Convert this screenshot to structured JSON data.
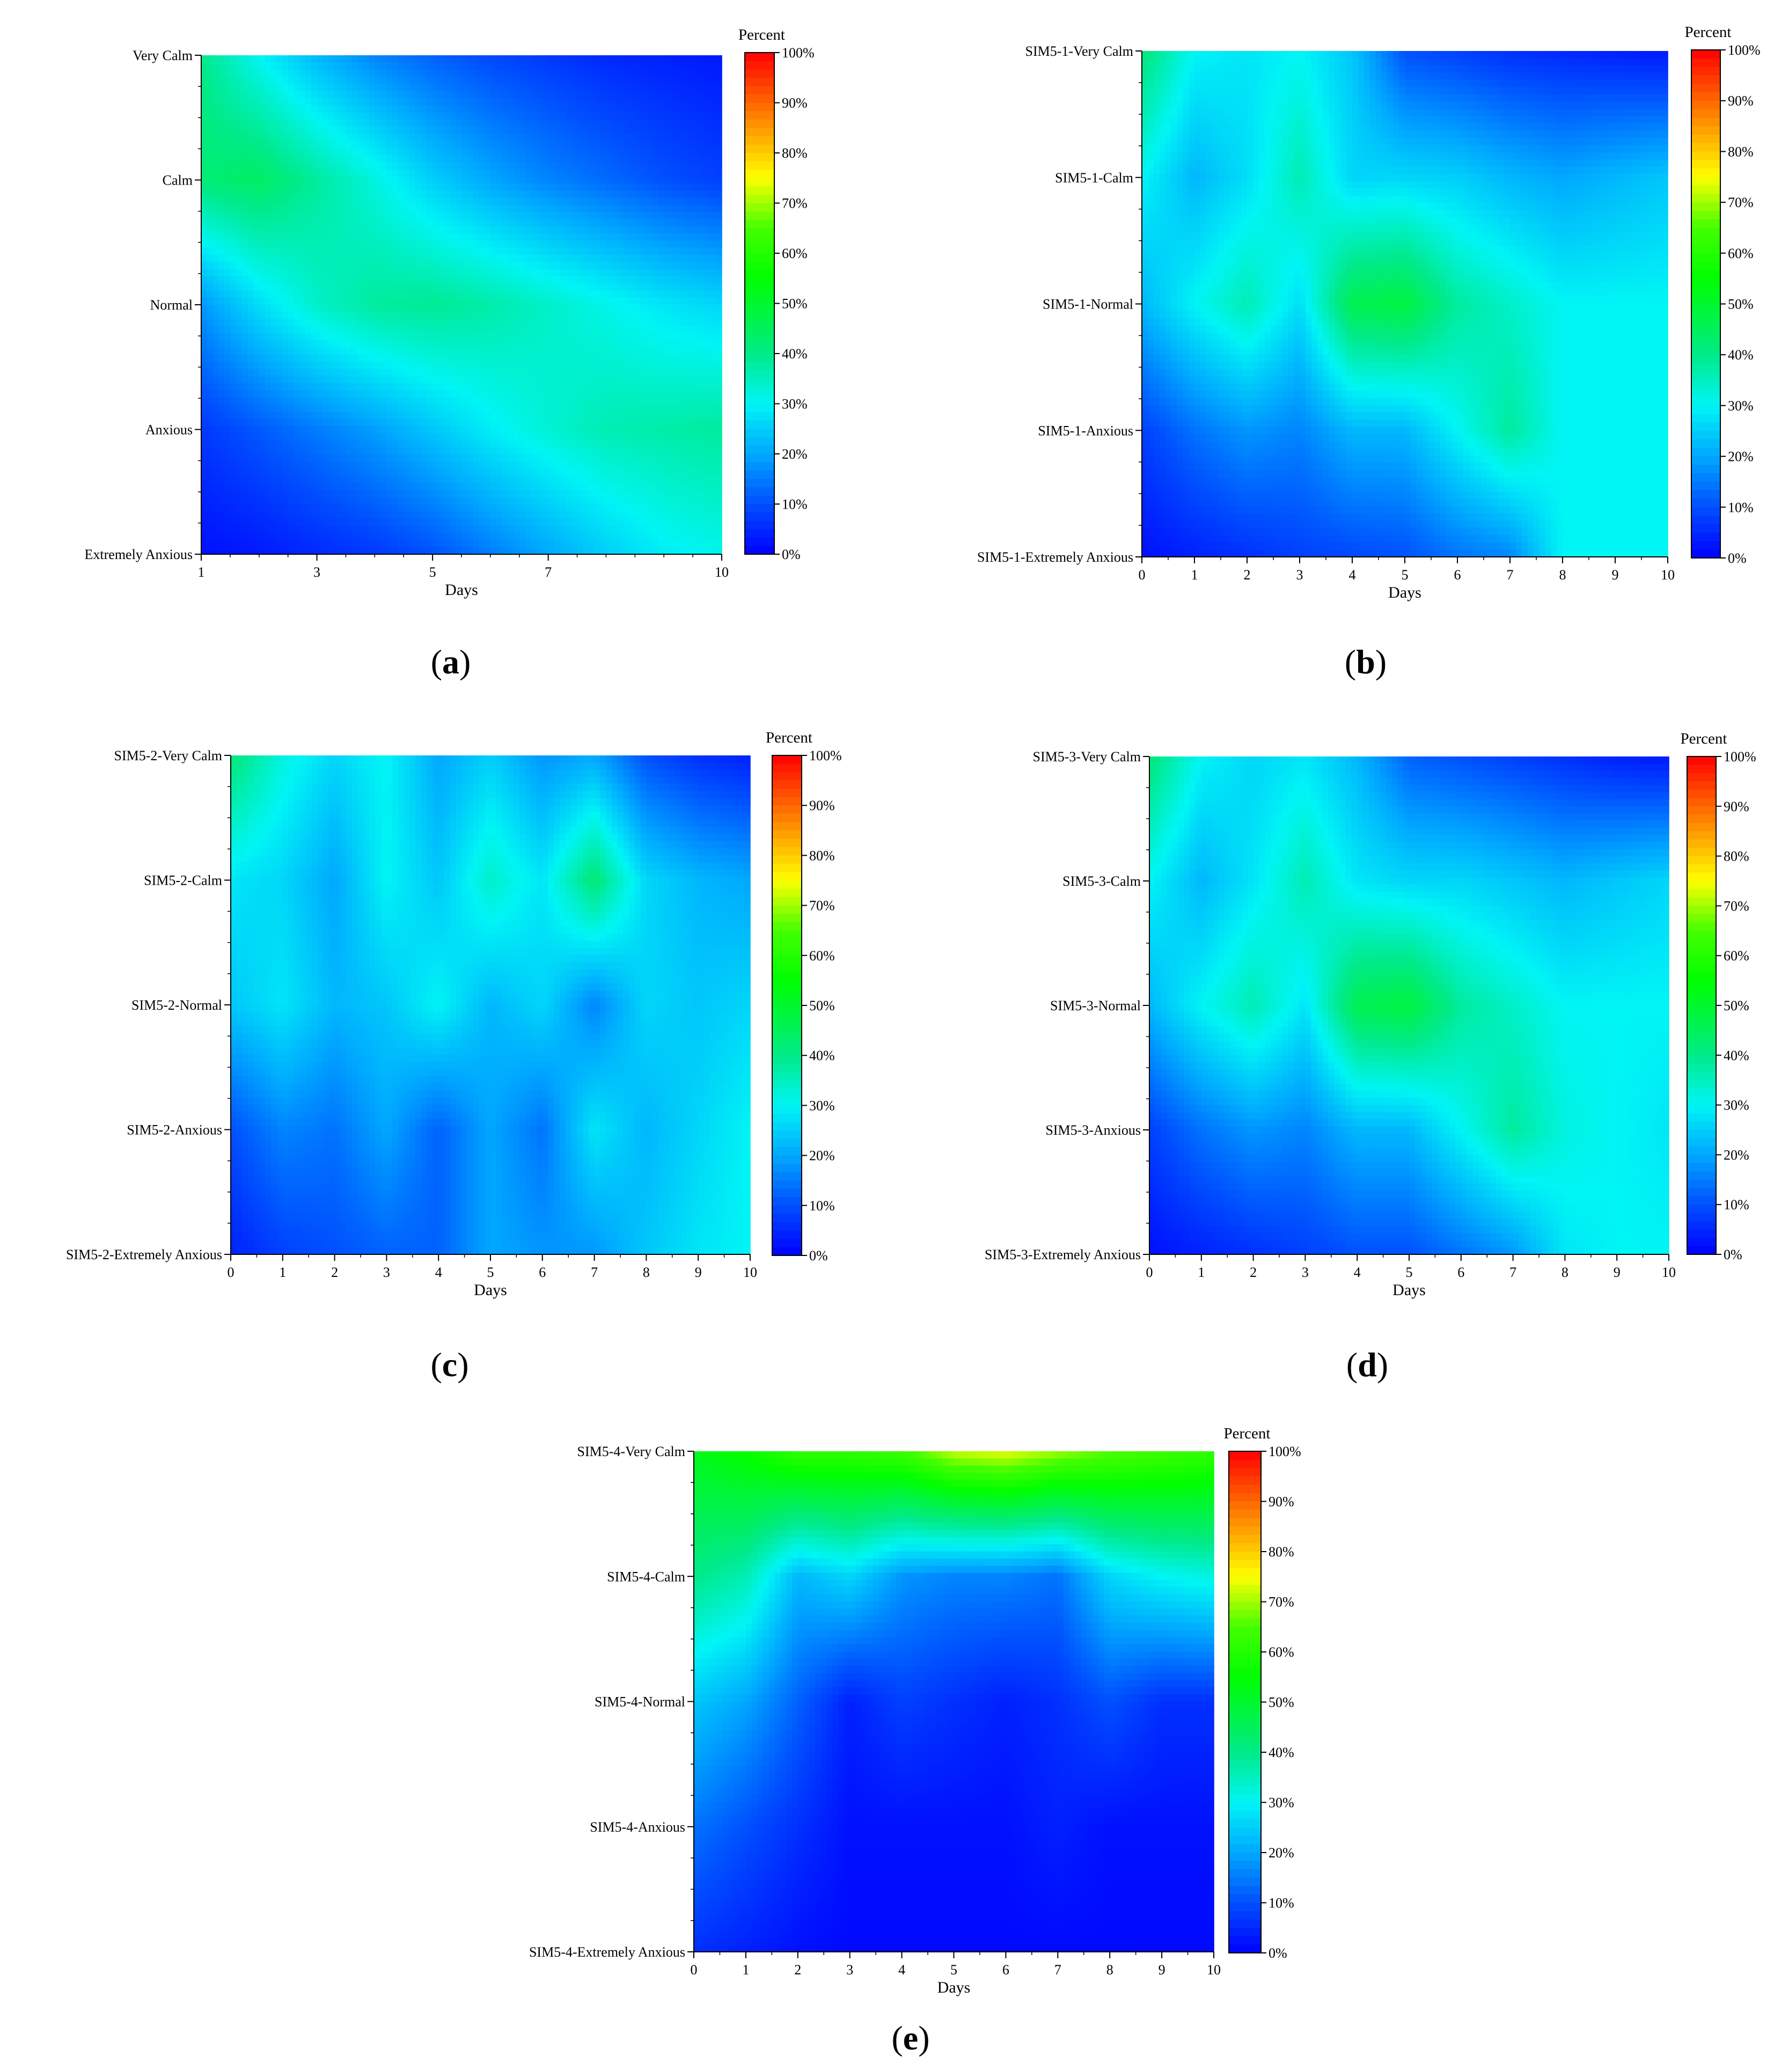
{
  "colorbar": {
    "title": "Percent",
    "ticks": [
      "0%",
      "10%",
      "20%",
      "30%",
      "40%",
      "50%",
      "60%",
      "70%",
      "80%",
      "90%",
      "100%"
    ],
    "stops": [
      {
        "v": 0.0,
        "color": "#0000ff"
      },
      {
        "v": 0.1,
        "color": "#0050ff"
      },
      {
        "v": 0.2,
        "color": "#00a8ff"
      },
      {
        "v": 0.3,
        "color": "#00f5f5"
      },
      {
        "v": 0.4,
        "color": "#00ea88"
      },
      {
        "v": 0.55,
        "color": "#00ff00"
      },
      {
        "v": 0.65,
        "color": "#44ff00"
      },
      {
        "v": 0.75,
        "color": "#ffff00"
      },
      {
        "v": 0.85,
        "color": "#ff9900"
      },
      {
        "v": 1.0,
        "color": "#ff0000"
      }
    ]
  },
  "chart_data": [
    {
      "type": "heatmap",
      "panel": "(a)",
      "xlabel": "Days",
      "x": [
        1,
        2,
        3,
        4,
        5,
        6,
        7,
        8,
        9,
        10
      ],
      "xticks": [
        "1",
        "3",
        "5",
        "7",
        "10"
      ],
      "xlim": [
        1,
        10
      ],
      "categories": [
        "Very Calm",
        "Calm",
        "Normal",
        "Anxious",
        "Extremely Anxious"
      ],
      "colorbar_title": "Percent",
      "zlim": [
        0,
        100
      ],
      "z": [
        [
          40,
          30,
          22,
          16,
          12,
          9,
          7,
          5,
          4,
          3
        ],
        [
          42,
          44,
          38,
          32,
          25,
          20,
          16,
          13,
          10,
          8
        ],
        [
          18,
          27,
          34,
          38,
          39,
          37,
          34,
          31,
          28,
          26
        ],
        [
          7,
          11,
          15,
          19,
          24,
          29,
          33,
          36,
          37,
          38
        ],
        [
          2,
          3,
          5,
          7,
          10,
          15,
          20,
          25,
          29,
          31
        ]
      ]
    },
    {
      "type": "heatmap",
      "panel": "(b)",
      "xlabel": "Days",
      "x": [
        0,
        1,
        2,
        3,
        4,
        5,
        6,
        7,
        8,
        9,
        10
      ],
      "xticks": [
        "0",
        "1",
        "2",
        "3",
        "4",
        "5",
        "6",
        "7",
        "8",
        "9",
        "10"
      ],
      "xlim": [
        0,
        10
      ],
      "categories": [
        "SIM5-1-Very Calm",
        "SIM5-1-Calm",
        "SIM5-1-Normal",
        "SIM5-1-Anxious",
        "SIM5-1-Extremely Anxious"
      ],
      "colorbar_title": "Percent",
      "zlim": [
        0,
        100
      ],
      "z": [
        [
          42,
          30,
          28,
          30,
          24,
          10,
          8,
          6,
          5,
          4,
          3
        ],
        [
          30,
          22,
          27,
          36,
          26,
          26,
          25,
          22,
          20,
          22,
          24
        ],
        [
          22,
          30,
          36,
          27,
          46,
          48,
          38,
          34,
          30,
          30,
          30
        ],
        [
          8,
          14,
          18,
          16,
          22,
          22,
          30,
          38,
          30,
          30,
          30
        ],
        [
          2,
          4,
          6,
          8,
          9,
          10,
          14,
          16,
          30,
          30,
          30
        ]
      ]
    },
    {
      "type": "heatmap",
      "panel": "(c)",
      "xlabel": "Days",
      "x": [
        0,
        1,
        2,
        3,
        4,
        5,
        6,
        7,
        8,
        9,
        10
      ],
      "xticks": [
        "0",
        "1",
        "2",
        "3",
        "4",
        "5",
        "6",
        "7",
        "8",
        "9",
        "10"
      ],
      "xlim": [
        0,
        10
      ],
      "categories": [
        "SIM5-2-Very Calm",
        "SIM5-2-Calm",
        "SIM5-2-Normal",
        "SIM5-2-Anxious",
        "SIM5-2-Extremely Anxious"
      ],
      "colorbar_title": "Percent",
      "zlim": [
        0,
        100
      ],
      "z": [
        [
          42,
          32,
          26,
          30,
          20,
          25,
          18,
          20,
          10,
          6,
          4
        ],
        [
          28,
          26,
          20,
          30,
          24,
          34,
          28,
          42,
          26,
          22,
          20
        ],
        [
          24,
          28,
          22,
          24,
          30,
          22,
          26,
          16,
          26,
          24,
          26
        ],
        [
          10,
          16,
          14,
          20,
          12,
          20,
          14,
          28,
          22,
          26,
          30
        ],
        [
          4,
          8,
          10,
          12,
          12,
          20,
          18,
          18,
          24,
          28,
          30
        ]
      ]
    },
    {
      "type": "heatmap",
      "panel": "(d)",
      "xlabel": "Days",
      "x": [
        0,
        1,
        2,
        3,
        4,
        5,
        6,
        7,
        8,
        9,
        10
      ],
      "xticks": [
        "0",
        "1",
        "2",
        "3",
        "4",
        "5",
        "6",
        "7",
        "8",
        "9",
        "10"
      ],
      "xlim": [
        0,
        10
      ],
      "categories": [
        "SIM5-3-Very Calm",
        "SIM5-3-Calm",
        "SIM5-3-Normal",
        "SIM5-3-Anxious",
        "SIM5-3-Extremely Anxious"
      ],
      "colorbar_title": "Percent",
      "zlim": [
        0,
        100
      ],
      "z": [
        [
          42,
          30,
          26,
          28,
          22,
          12,
          10,
          8,
          6,
          4,
          3
        ],
        [
          30,
          22,
          28,
          36,
          28,
          26,
          26,
          24,
          22,
          24,
          26
        ],
        [
          22,
          30,
          36,
          28,
          46,
          48,
          38,
          34,
          30,
          30,
          30
        ],
        [
          8,
          14,
          18,
          16,
          22,
          22,
          30,
          38,
          32,
          30,
          28
        ],
        [
          2,
          4,
          6,
          8,
          10,
          10,
          14,
          18,
          28,
          30,
          30
        ]
      ]
    },
    {
      "type": "heatmap",
      "panel": "(e)",
      "xlabel": "Days",
      "x": [
        0,
        1,
        2,
        3,
        4,
        5,
        6,
        7,
        8,
        9,
        10
      ],
      "xticks": [
        "0",
        "1",
        "2",
        "3",
        "4",
        "5",
        "6",
        "7",
        "8",
        "9",
        "10"
      ],
      "xlim": [
        0,
        10
      ],
      "categories": [
        "SIM5-4-Very Calm",
        "SIM5-4-Calm",
        "SIM5-4-Normal",
        "SIM5-4-Anxious",
        "SIM5-4-Extremely Anxious"
      ],
      "colorbar_title": "Percent",
      "zlim": [
        0,
        100
      ],
      "z": [
        [
          52,
          56,
          62,
          62,
          64,
          72,
          74,
          70,
          66,
          64,
          62
        ],
        [
          40,
          36,
          22,
          26,
          18,
          16,
          16,
          14,
          26,
          30,
          32
        ],
        [
          24,
          20,
          12,
          4,
          8,
          6,
          4,
          6,
          10,
          6,
          6
        ],
        [
          14,
          10,
          6,
          2,
          2,
          2,
          2,
          4,
          2,
          2,
          2
        ],
        [
          6,
          4,
          2,
          1,
          1,
          1,
          1,
          1,
          1,
          1,
          1
        ]
      ]
    }
  ]
}
